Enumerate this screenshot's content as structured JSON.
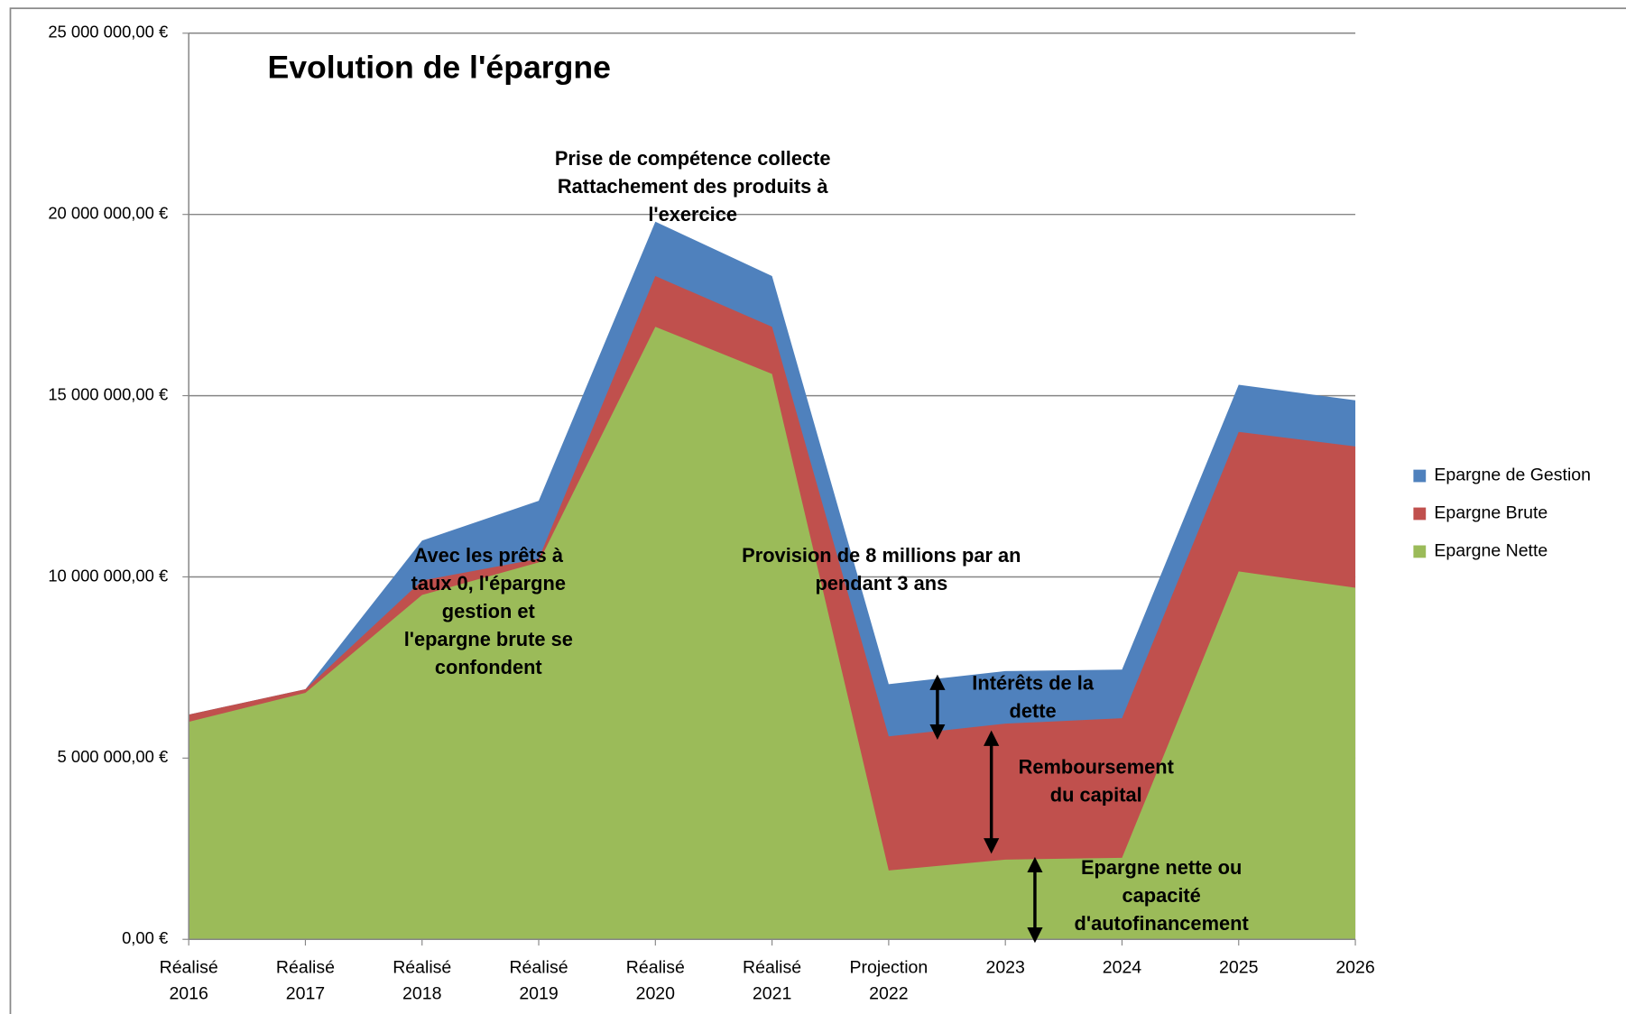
{
  "chart_data": {
    "type": "area",
    "title": "Evolution de l'épargne",
    "categories": [
      [
        "Réalisé",
        "2016"
      ],
      [
        "Réalisé",
        "2017"
      ],
      [
        "Réalisé",
        "2018"
      ],
      [
        "Réalisé",
        "2019"
      ],
      [
        "Réalisé",
        "2020"
      ],
      [
        "Réalisé",
        "2021"
      ],
      [
        "Projection",
        "2022"
      ],
      [
        "2023"
      ],
      [
        "2024"
      ],
      [
        "2025"
      ],
      [
        "2026"
      ]
    ],
    "series": [
      {
        "name": "Epargne de Gestion",
        "color": "#4f81bd",
        "values": [
          6200000,
          6900000,
          11000000,
          12100000,
          19800000,
          18300000,
          7040000,
          7400000,
          7440000,
          15300000,
          14870000
        ]
      },
      {
        "name": "Epargne Brute",
        "color": "#c0504d",
        "values": [
          6200000,
          6900000,
          9900000,
          10500000,
          18300000,
          16900000,
          5600000,
          5950000,
          6100000,
          14000000,
          13600000
        ]
      },
      {
        "name": "Epargne Nette",
        "color": "#9bbb59",
        "values": [
          6000000,
          6800000,
          9500000,
          10400000,
          16900000,
          15600000,
          1900000,
          2200000,
          2250000,
          10150000,
          9700000
        ]
      }
    ],
    "ylim": [
      0,
      25000000
    ],
    "yticks": [
      {
        "value": 0,
        "label": "0,00 €"
      },
      {
        "value": 5000000,
        "label": "5 000 000,00 €"
      },
      {
        "value": 10000000,
        "label": "10 000 000,00 €"
      },
      {
        "value": 15000000,
        "label": "15 000 000,00 €"
      },
      {
        "value": 20000000,
        "label": "20 000 000,00 €"
      },
      {
        "value": 25000000,
        "label": "25 000 000,00 €"
      }
    ],
    "grid": true,
    "legend": "right",
    "annotations": [
      [
        "Prise de compétence collecte",
        "Rattachement des produits à",
        "l'exercice"
      ],
      [
        "Avec les prêts à",
        "taux 0, l'épargne",
        "gestion et",
        "l'epargne brute se",
        "confondent"
      ],
      [
        "Provision de 8 millions par an",
        "pendant 3 ans"
      ],
      [
        "Intérêts de la",
        "dette"
      ],
      [
        "Remboursement",
        "du capital"
      ],
      [
        "Epargne nette ou",
        "capacité",
        "d'autofinancement"
      ]
    ]
  }
}
